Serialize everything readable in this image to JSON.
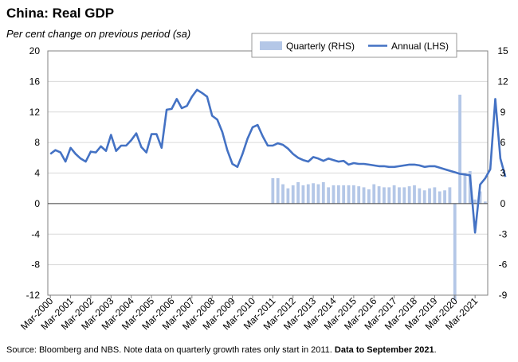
{
  "title": "China: Real GDP",
  "subtitle": "Per cent change on previous period (sa)",
  "footer": {
    "source": "Source: Bloomberg and NBS.  Note data on quarterly growth rates only start in 2011.",
    "bold": "Data to September 2021",
    "end": "."
  },
  "colors": {
    "quarterly": "#b4c7e7",
    "annual": "#4472c4",
    "axis": "#808080",
    "grid": "#d9d9d9"
  },
  "chart_data": {
    "type": "bar+line",
    "grid": true,
    "legend_position": "top-right",
    "left_axis": {
      "ylim": [
        -12,
        20
      ],
      "ticks": [
        -12,
        -8,
        -4,
        0,
        4,
        8,
        12,
        16,
        20
      ]
    },
    "right_axis": {
      "ylim": [
        -9,
        15
      ],
      "ticks": [
        -9,
        -6,
        -3,
        0,
        3,
        6,
        9,
        12,
        15
      ]
    },
    "x_labels": [
      "Mar-2000",
      "Mar-2001",
      "Mar-2002",
      "Mar-2003",
      "Mar-2004",
      "Mar-2005",
      "Mar-2006",
      "Mar-2007",
      "Mar-2008",
      "Mar-2009",
      "Mar-2010",
      "Mar-2011",
      "Mar-2012",
      "Mar-2013",
      "Mar-2014",
      "Mar-2015",
      "Mar-2016",
      "Mar-2017",
      "Mar-2018",
      "Mar-2019",
      "Mar-2020",
      "Mar-2021"
    ],
    "quarterly": {
      "name": "Quarterly (RHS)",
      "start": "Mar-2011",
      "values": [
        2.5,
        2.5,
        1.9,
        1.5,
        1.8,
        2.1,
        1.8,
        1.9,
        2.0,
        1.9,
        2.1,
        1.6,
        1.8,
        1.8,
        1.8,
        1.8,
        1.8,
        1.7,
        1.6,
        1.4,
        1.9,
        1.7,
        1.6,
        1.6,
        1.8,
        1.6,
        1.6,
        1.7,
        1.8,
        1.5,
        1.3,
        1.5,
        1.6,
        1.2,
        1.3,
        1.6,
        -9.5,
        10.7,
        3.0,
        3.2,
        0.4,
        1.2,
        0.2
      ]
    },
    "annual": {
      "name": "Annual (LHS)",
      "start": "Mar-2000",
      "values": [
        6.5,
        7.0,
        6.7,
        5.5,
        7.3,
        6.5,
        5.9,
        5.5,
        6.8,
        6.7,
        7.5,
        6.9,
        9.0,
        6.9,
        7.6,
        7.6,
        8.3,
        9.2,
        7.4,
        6.7,
        9.1,
        9.1,
        7.3,
        12.3,
        12.4,
        13.7,
        12.5,
        12.8,
        14.0,
        14.9,
        14.5,
        14.0,
        11.5,
        11.0,
        9.4,
        7.0,
        5.2,
        4.8,
        6.5,
        8.5,
        10.0,
        10.3,
        8.8,
        7.6,
        7.6,
        7.9,
        7.7,
        7.2,
        6.5,
        6.0,
        5.7,
        5.5,
        6.1,
        5.9,
        5.6,
        5.9,
        5.7,
        5.5,
        5.6,
        5.1,
        5.3,
        5.2,
        5.2,
        5.1,
        5.0,
        4.9,
        4.9,
        4.8,
        4.8,
        4.9,
        5.0,
        5.1,
        5.1,
        5.0,
        4.8,
        4.9,
        4.9,
        4.7,
        4.5,
        4.3,
        4.1,
        3.9,
        3.8,
        3.7,
        -3.8,
        2.5,
        3.3,
        4.5,
        13.7,
        5.9,
        3.5
      ]
    }
  }
}
